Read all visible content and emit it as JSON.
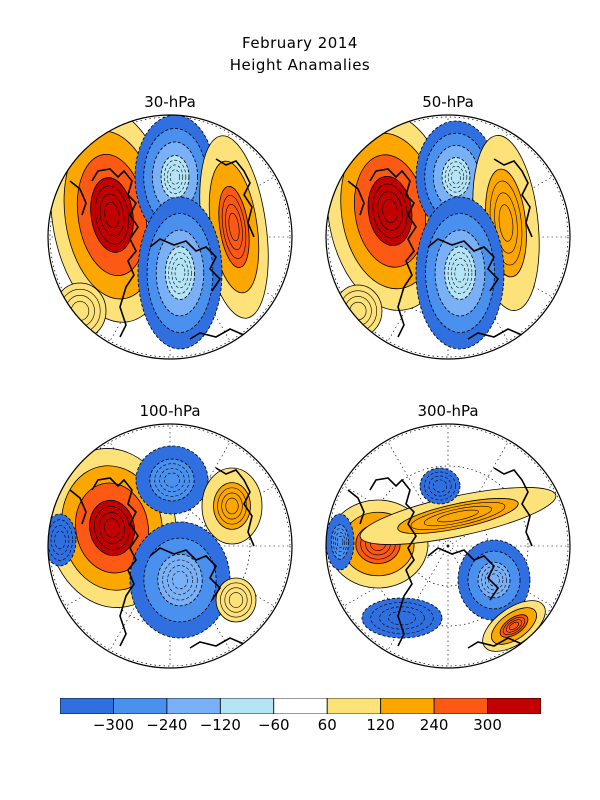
{
  "title": "February 2014",
  "subtitle": "Height Anamalies",
  "colors": {
    "neg": [
      "#2f6fe0",
      "#4a90ee",
      "#7ab0f5",
      "#b4e4f5"
    ],
    "zero": "#ffffff",
    "pos": [
      "#fde27a",
      "#fca600",
      "#fc5a14",
      "#c20000"
    ],
    "land": "#000000",
    "circle": "#000000"
  },
  "panels": [
    {
      "label": "30-hPa",
      "blobs": [
        {
          "sign": 1,
          "level": 4,
          "desc": "north america"
        },
        {
          "sign": -1,
          "level": 4,
          "desc": "arctic / north pacific"
        },
        {
          "sign": 1,
          "level": 3,
          "desc": "eurasia"
        },
        {
          "sign": -1,
          "level": 4,
          "desc": "siberia"
        },
        {
          "sign": 1,
          "level": 1,
          "desc": "east asia"
        }
      ]
    },
    {
      "label": "50-hPa",
      "blobs": [
        {
          "sign": 1,
          "level": 4,
          "desc": "north america"
        },
        {
          "sign": -1,
          "level": 4,
          "desc": "arctic"
        },
        {
          "sign": 1,
          "level": 2,
          "desc": "eurasia"
        },
        {
          "sign": -1,
          "level": 4,
          "desc": "siberia"
        },
        {
          "sign": 1,
          "level": 1,
          "desc": "east asia"
        }
      ]
    },
    {
      "label": "100-hPa",
      "blobs": [
        {
          "sign": 1,
          "level": 4,
          "desc": "north america"
        },
        {
          "sign": -1,
          "level": 2,
          "desc": "arctic"
        },
        {
          "sign": 1,
          "level": 2,
          "desc": "europe"
        },
        {
          "sign": -1,
          "level": 3,
          "desc": "siberia"
        },
        {
          "sign": -1,
          "level": 1,
          "desc": "pacific"
        },
        {
          "sign": 1,
          "level": 1,
          "desc": "asia"
        }
      ]
    },
    {
      "label": "300-hPa",
      "blobs": [
        {
          "sign": 1,
          "level": 3,
          "desc": "north america"
        },
        {
          "sign": 1,
          "level": 2,
          "desc": "eurasia band"
        },
        {
          "sign": -1,
          "level": 1,
          "desc": "arctic"
        },
        {
          "sign": -1,
          "level": 3,
          "desc": "siberia"
        },
        {
          "sign": -1,
          "level": 2,
          "desc": "pacific"
        },
        {
          "sign": 1,
          "level": 3,
          "desc": "east asia"
        },
        {
          "sign": -1,
          "level": 1,
          "desc": "atlantic"
        }
      ]
    }
  ],
  "colorbar": {
    "labels": [
      "-300",
      "-240",
      "-120",
      "-60",
      "60",
      "120",
      "240",
      "300"
    ]
  }
}
